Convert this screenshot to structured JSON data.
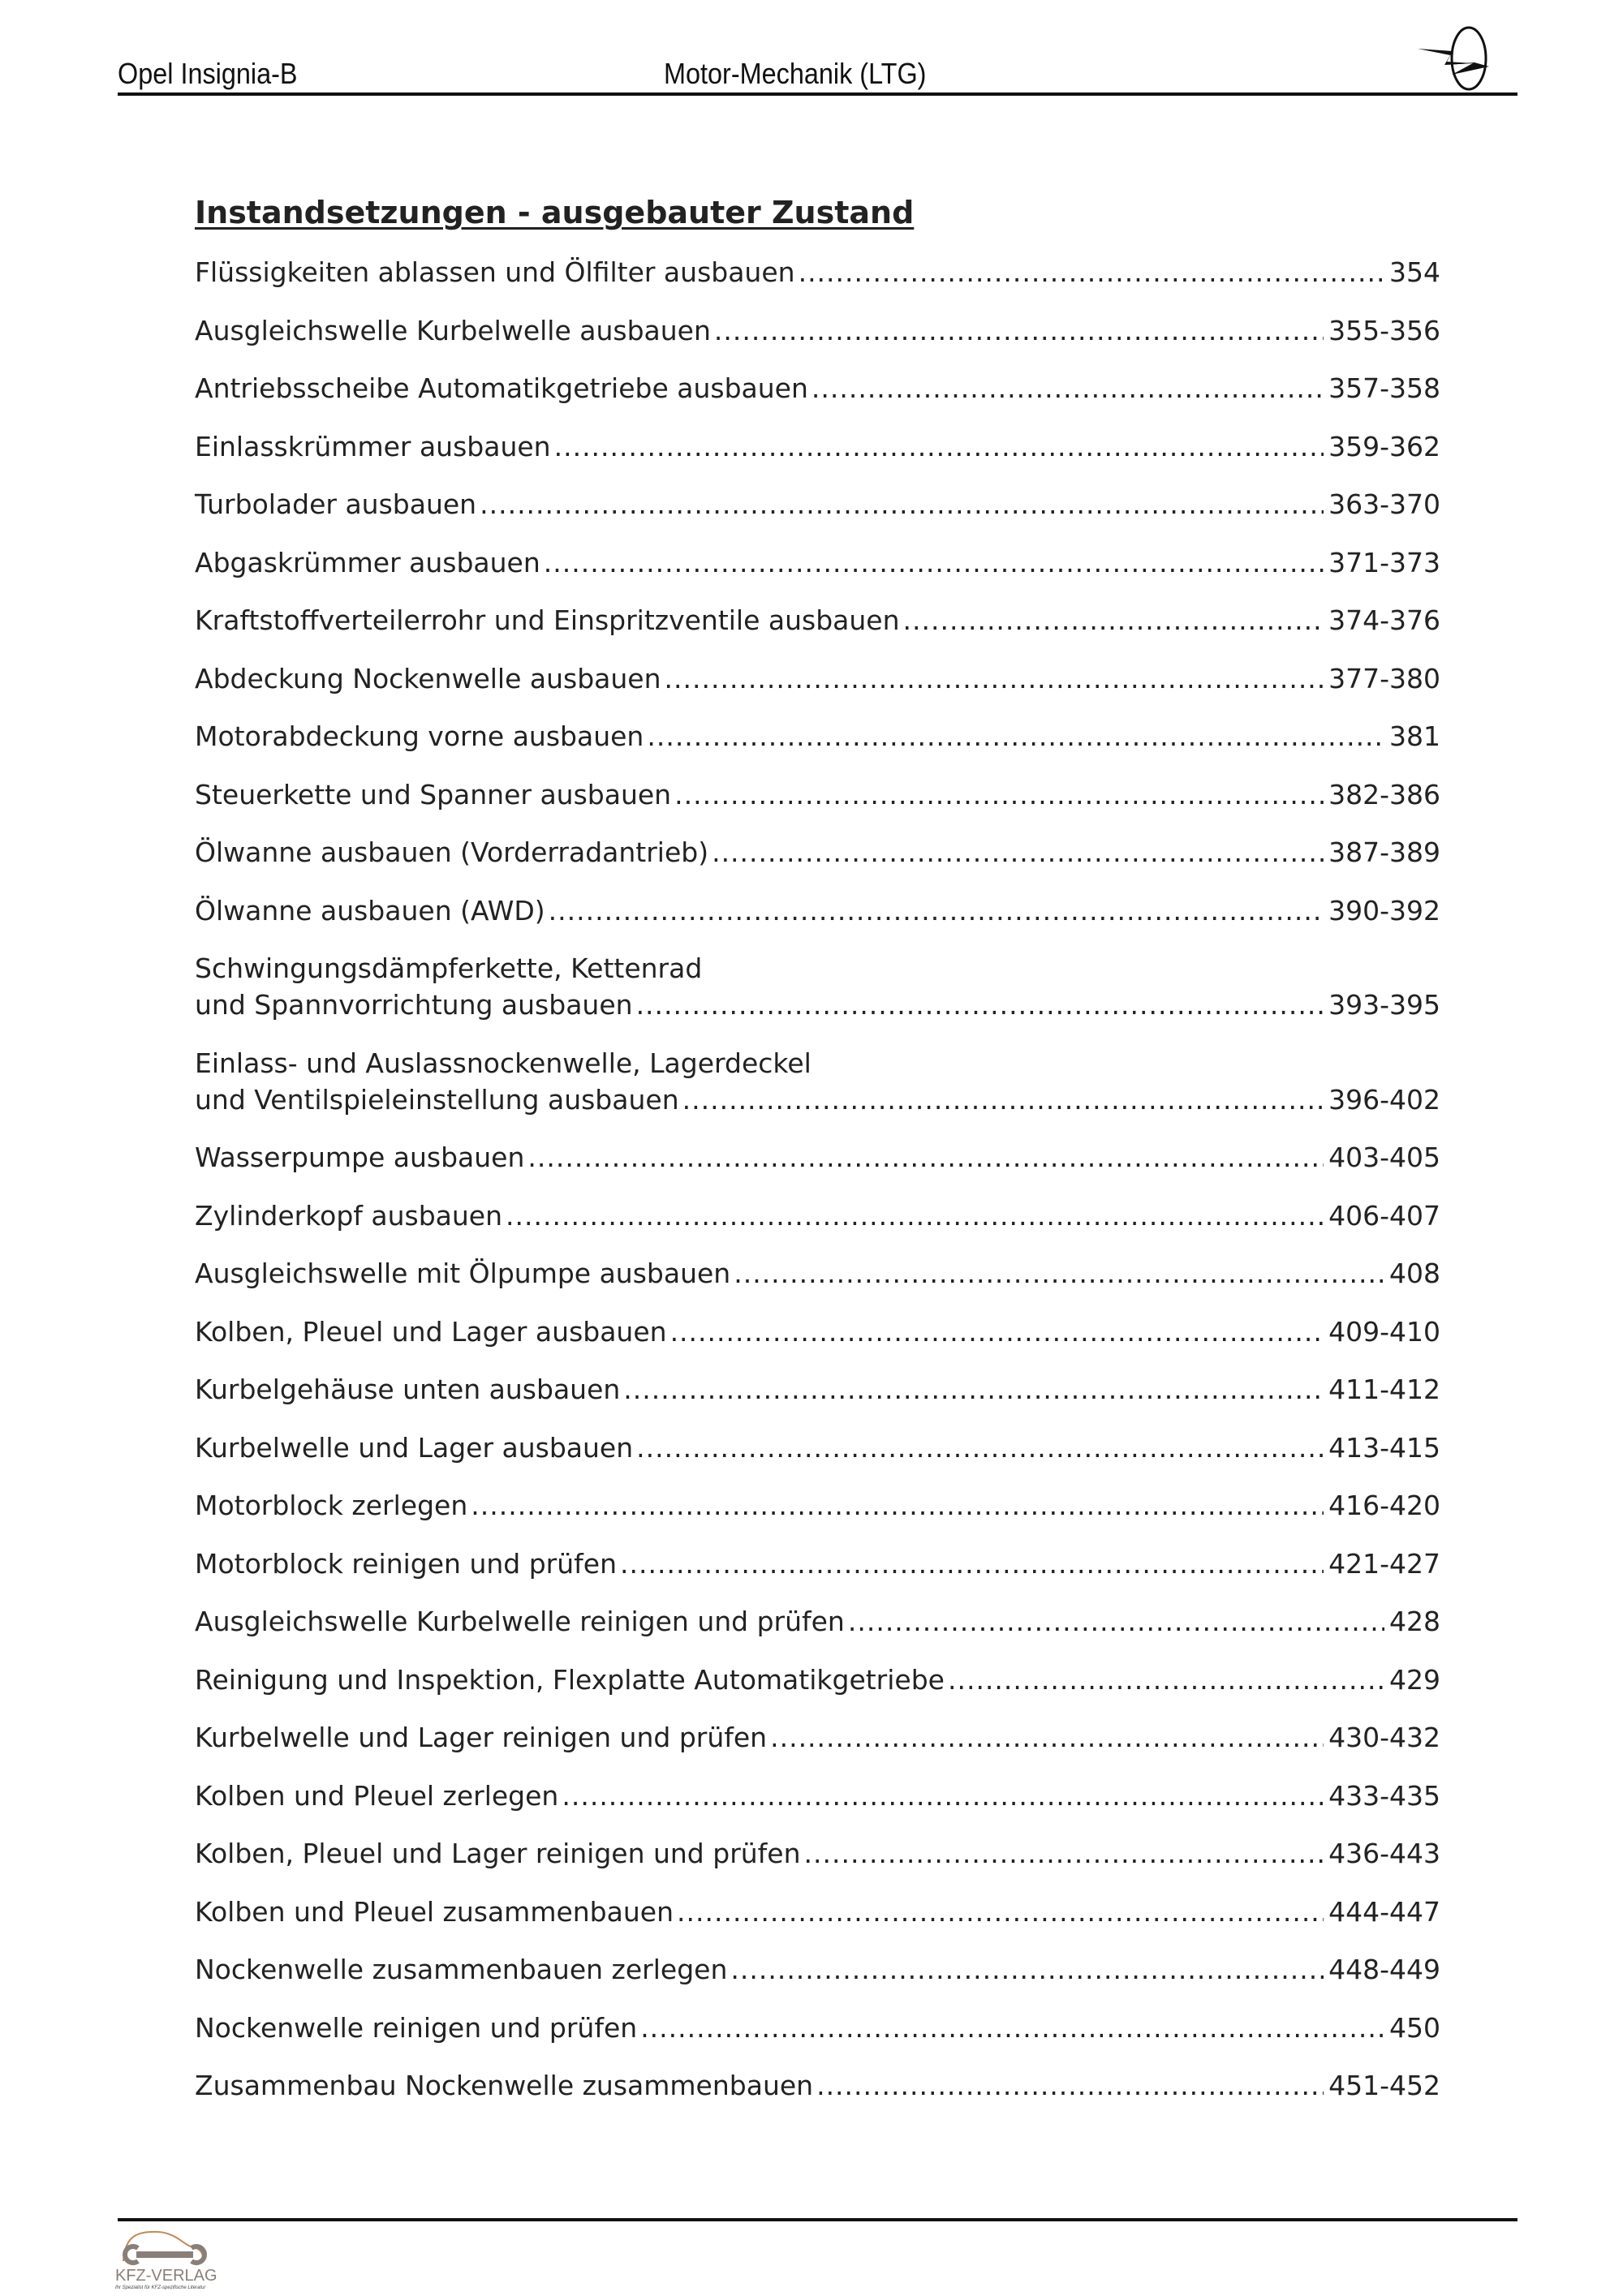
{
  "header": {
    "left": "Opel Insignia-B",
    "center": "Motor-Mechanik (LTG)",
    "logo": "opel-logo"
  },
  "title": "Instandsetzungen - ausgebauter Zustand",
  "entries": [
    {
      "lines": [
        "Flüssigkeiten ablassen und Ölfilter ausbauen"
      ],
      "page": "354"
    },
    {
      "lines": [
        "Ausgleichswelle Kurbelwelle ausbauen"
      ],
      "page": "355-356"
    },
    {
      "lines": [
        "Antriebsscheibe Automatikgetriebe ausbauen"
      ],
      "page": "357-358"
    },
    {
      "lines": [
        "Einlasskrümmer ausbauen"
      ],
      "page": "359-362"
    },
    {
      "lines": [
        "Turbolader ausbauen"
      ],
      "page": "363-370"
    },
    {
      "lines": [
        "Abgaskrümmer ausbauen"
      ],
      "page": "371-373"
    },
    {
      "lines": [
        "Kraftstoffverteilerrohr und Einspritzventile ausbauen"
      ],
      "page": "374-376"
    },
    {
      "lines": [
        "Abdeckung Nockenwelle ausbauen"
      ],
      "page": "377-380"
    },
    {
      "lines": [
        "Motorabdeckung vorne ausbauen"
      ],
      "page": "381"
    },
    {
      "lines": [
        "Steuerkette und Spanner ausbauen"
      ],
      "page": "382-386"
    },
    {
      "lines": [
        "Ölwanne ausbauen (Vorderradantrieb)"
      ],
      "page": "387-389"
    },
    {
      "lines": [
        "Ölwanne ausbauen (AWD)"
      ],
      "page": "390-392"
    },
    {
      "lines": [
        "Schwingungsdämpferkette, Kettenrad",
        "und Spannvorrichtung ausbauen"
      ],
      "page": "393-395"
    },
    {
      "lines": [
        "Einlass- und Auslassnockenwelle, Lagerdeckel",
        "und Ventilspieleinstellung ausbauen"
      ],
      "page": "396-402"
    },
    {
      "lines": [
        "Wasserpumpe ausbauen"
      ],
      "page": "403-405"
    },
    {
      "lines": [
        "Zylinderkopf ausbauen"
      ],
      "page": "406-407"
    },
    {
      "lines": [
        "Ausgleichswelle mit Ölpumpe ausbauen"
      ],
      "page": "408"
    },
    {
      "lines": [
        "Kolben, Pleuel und Lager ausbauen"
      ],
      "page": "409-410"
    },
    {
      "lines": [
        "Kurbelgehäuse unten ausbauen"
      ],
      "page": "411-412"
    },
    {
      "lines": [
        "Kurbelwelle und Lager ausbauen"
      ],
      "page": "413-415"
    },
    {
      "lines": [
        "Motorblock zerlegen"
      ],
      "page": "416-420"
    },
    {
      "lines": [
        "Motorblock reinigen und prüfen"
      ],
      "page": "421-427"
    },
    {
      "lines": [
        "Ausgleichswelle Kurbelwelle reinigen und prüfen"
      ],
      "page": "428"
    },
    {
      "lines": [
        "Reinigung und Inspektion, Flexplatte Automatikgetriebe"
      ],
      "page": "429"
    },
    {
      "lines": [
        "Kurbelwelle und Lager reinigen und prüfen"
      ],
      "page": "430-432"
    },
    {
      "lines": [
        "Kolben und Pleuel zerlegen"
      ],
      "page": "433-435"
    },
    {
      "lines": [
        "Kolben, Pleuel und Lager reinigen und prüfen"
      ],
      "page": "436-443"
    },
    {
      "lines": [
        "Kolben und Pleuel zusammenbauen"
      ],
      "page": "444-447"
    },
    {
      "lines": [
        "Nockenwelle zusammenbauen zerlegen"
      ],
      "page": "448-449"
    },
    {
      "lines": [
        "Nockenwelle reinigen und prüfen"
      ],
      "page": "450"
    },
    {
      "lines": [
        "Zusammenbau Nockenwelle zusammenbauen"
      ],
      "page": "451-452"
    }
  ],
  "footer": {
    "logo_text": "KFZ-VERLAG",
    "logo_tagline": "Ihr Spezialist für KFZ-spezifische Literatur",
    "logo_color": "#8a7f78",
    "logo_accent": "#c08a5a"
  }
}
